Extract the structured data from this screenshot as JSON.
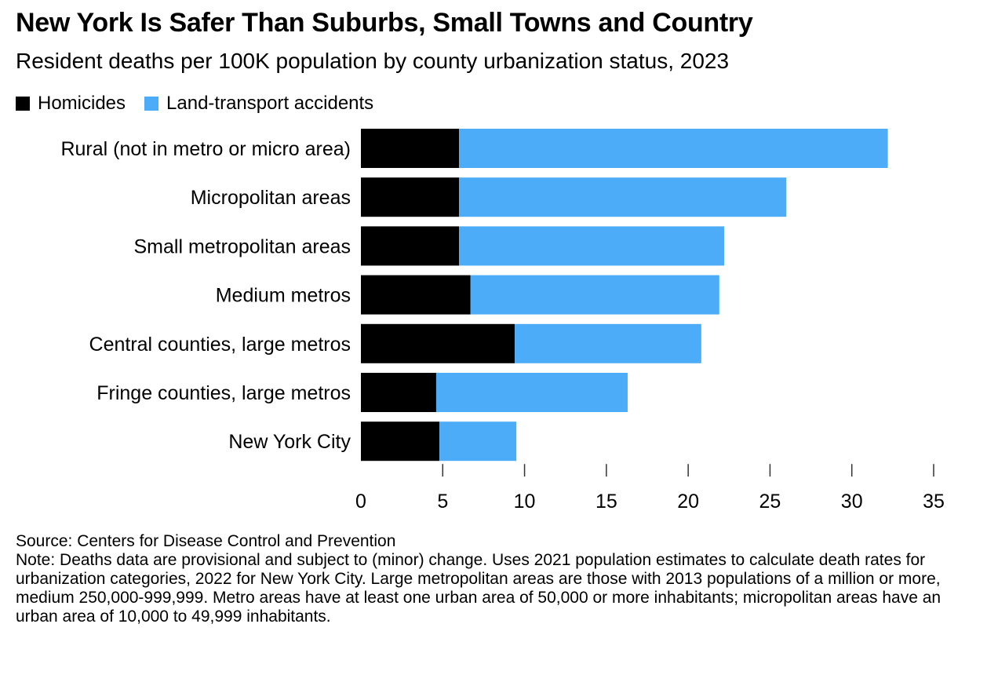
{
  "header": {
    "title": "New York Is Safer Than Suburbs, Small Towns and Country",
    "subtitle": "Resident deaths per 100K population by county urbanization status, 2023"
  },
  "legend": [
    {
      "label": "Homicides",
      "color": "#000000"
    },
    {
      "label": "Land-transport accidents",
      "color": "#4DACF7"
    }
  ],
  "chart_data": {
    "type": "bar",
    "orientation": "horizontal",
    "stacked": true,
    "title": "New York Is Safer Than Suburbs, Small Towns and Country",
    "subtitle": "Resident deaths per 100K population by county urbanization status, 2023",
    "categories": [
      "Rural (not in metro or micro area)",
      "Micropolitan areas",
      "Small metropolitan areas",
      "Medium metros",
      "Central counties, large metros",
      "Fringe counties, large metros",
      "New York City"
    ],
    "series": [
      {
        "name": "Homicides",
        "color": "#000000",
        "values": [
          6.0,
          6.0,
          6.0,
          6.7,
          9.4,
          4.6,
          4.8
        ]
      },
      {
        "name": "Land-transport accidents",
        "color": "#4DACF7",
        "values": [
          26.2,
          20.0,
          16.2,
          15.2,
          11.4,
          11.7,
          4.7
        ]
      }
    ],
    "xlabel": "",
    "ylabel": "",
    "xlim": [
      0,
      35
    ],
    "xticks": [
      0,
      5,
      10,
      15,
      20,
      25,
      30,
      35
    ],
    "grid": false,
    "legend_position": "top-left"
  },
  "footer": {
    "source": "Source: Centers for Disease Control and Prevention",
    "note": "Note: Deaths data are provisional and subject to (minor) change. Uses 2021 population estimates to calculate death rates for urbanization categories, 2022 for New York City. Large metropolitan areas are those with 2013 populations of a million or more, medium 250,000-999,999. Metro areas have at least one urban area of 50,000 or more inhabitants; micropolitan areas have an urban area of 10,000 to 49,999 inhabitants."
  }
}
